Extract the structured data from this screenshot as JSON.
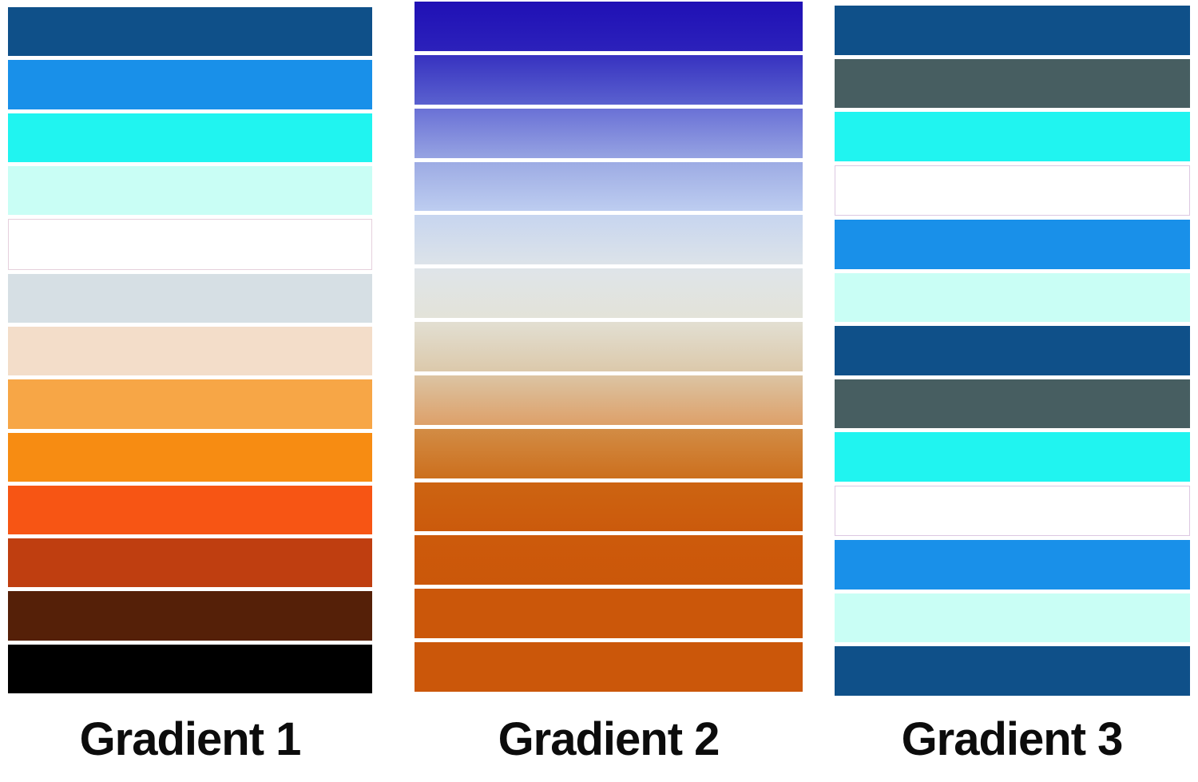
{
  "page": {
    "background": "#ffffff",
    "label_text_color": "#0c0c0c"
  },
  "columns": [
    {
      "label": "Gradient 1",
      "swatch_style": "solid",
      "bars": [
        {
          "color": "#0f5089"
        },
        {
          "color": "#1990e9"
        },
        {
          "color": "#20f4f0"
        },
        {
          "color": "#c9fef5"
        },
        {
          "color": "#ffffff",
          "border": "#e6d0dc"
        },
        {
          "color": "#d6dfe4"
        },
        {
          "color": "#f3ddc9"
        },
        {
          "color": "#f7a646"
        },
        {
          "color": "#f78c12"
        },
        {
          "color": "#f75514"
        },
        {
          "color": "#bf3e10"
        },
        {
          "color": "#552008"
        },
        {
          "color": "#000000"
        }
      ]
    },
    {
      "label": "Gradient 2",
      "swatch_style": "gradient",
      "bars": [
        {
          "from": "#1f10b5",
          "to": "#2c21bb"
        },
        {
          "from": "#3732c0",
          "to": "#5a61cf"
        },
        {
          "from": "#6a71d6",
          "to": "#96a3e2"
        },
        {
          "from": "#9dabe4",
          "to": "#bdcdf0"
        },
        {
          "from": "#c7d5ef",
          "to": "#dce3e9"
        },
        {
          "from": "#dfe4e9",
          "to": "#e3e3d9"
        },
        {
          "from": "#e2dfd2",
          "to": "#dcc9ab"
        },
        {
          "from": "#dcc4a3",
          "to": "#dda069"
        },
        {
          "from": "#d28c45",
          "to": "#cc6f1d"
        },
        {
          "from": "#cd6412",
          "to": "#cb5a0c"
        },
        {
          "from": "#cc5a0b",
          "to": "#cb570a"
        },
        {
          "from": "#cb570a",
          "to": "#cb570a"
        },
        {
          "from": "#cb570a",
          "to": "#cb570a"
        }
      ]
    },
    {
      "label": "Gradient 3",
      "swatch_style": "solid",
      "bars": [
        {
          "color": "#0f5089"
        },
        {
          "color": "#475e61"
        },
        {
          "color": "#20f4f0"
        },
        {
          "color": "#ffffff",
          "border": "#dcc8e2"
        },
        {
          "color": "#1990e9"
        },
        {
          "color": "#c9fef5"
        },
        {
          "color": "#0f5089"
        },
        {
          "color": "#475e61"
        },
        {
          "color": "#20f4f0"
        },
        {
          "color": "#ffffff",
          "border": "#dcc8e2"
        },
        {
          "color": "#1990e9"
        },
        {
          "color": "#c9fef5"
        },
        {
          "color": "#0f5089"
        }
      ]
    }
  ]
}
